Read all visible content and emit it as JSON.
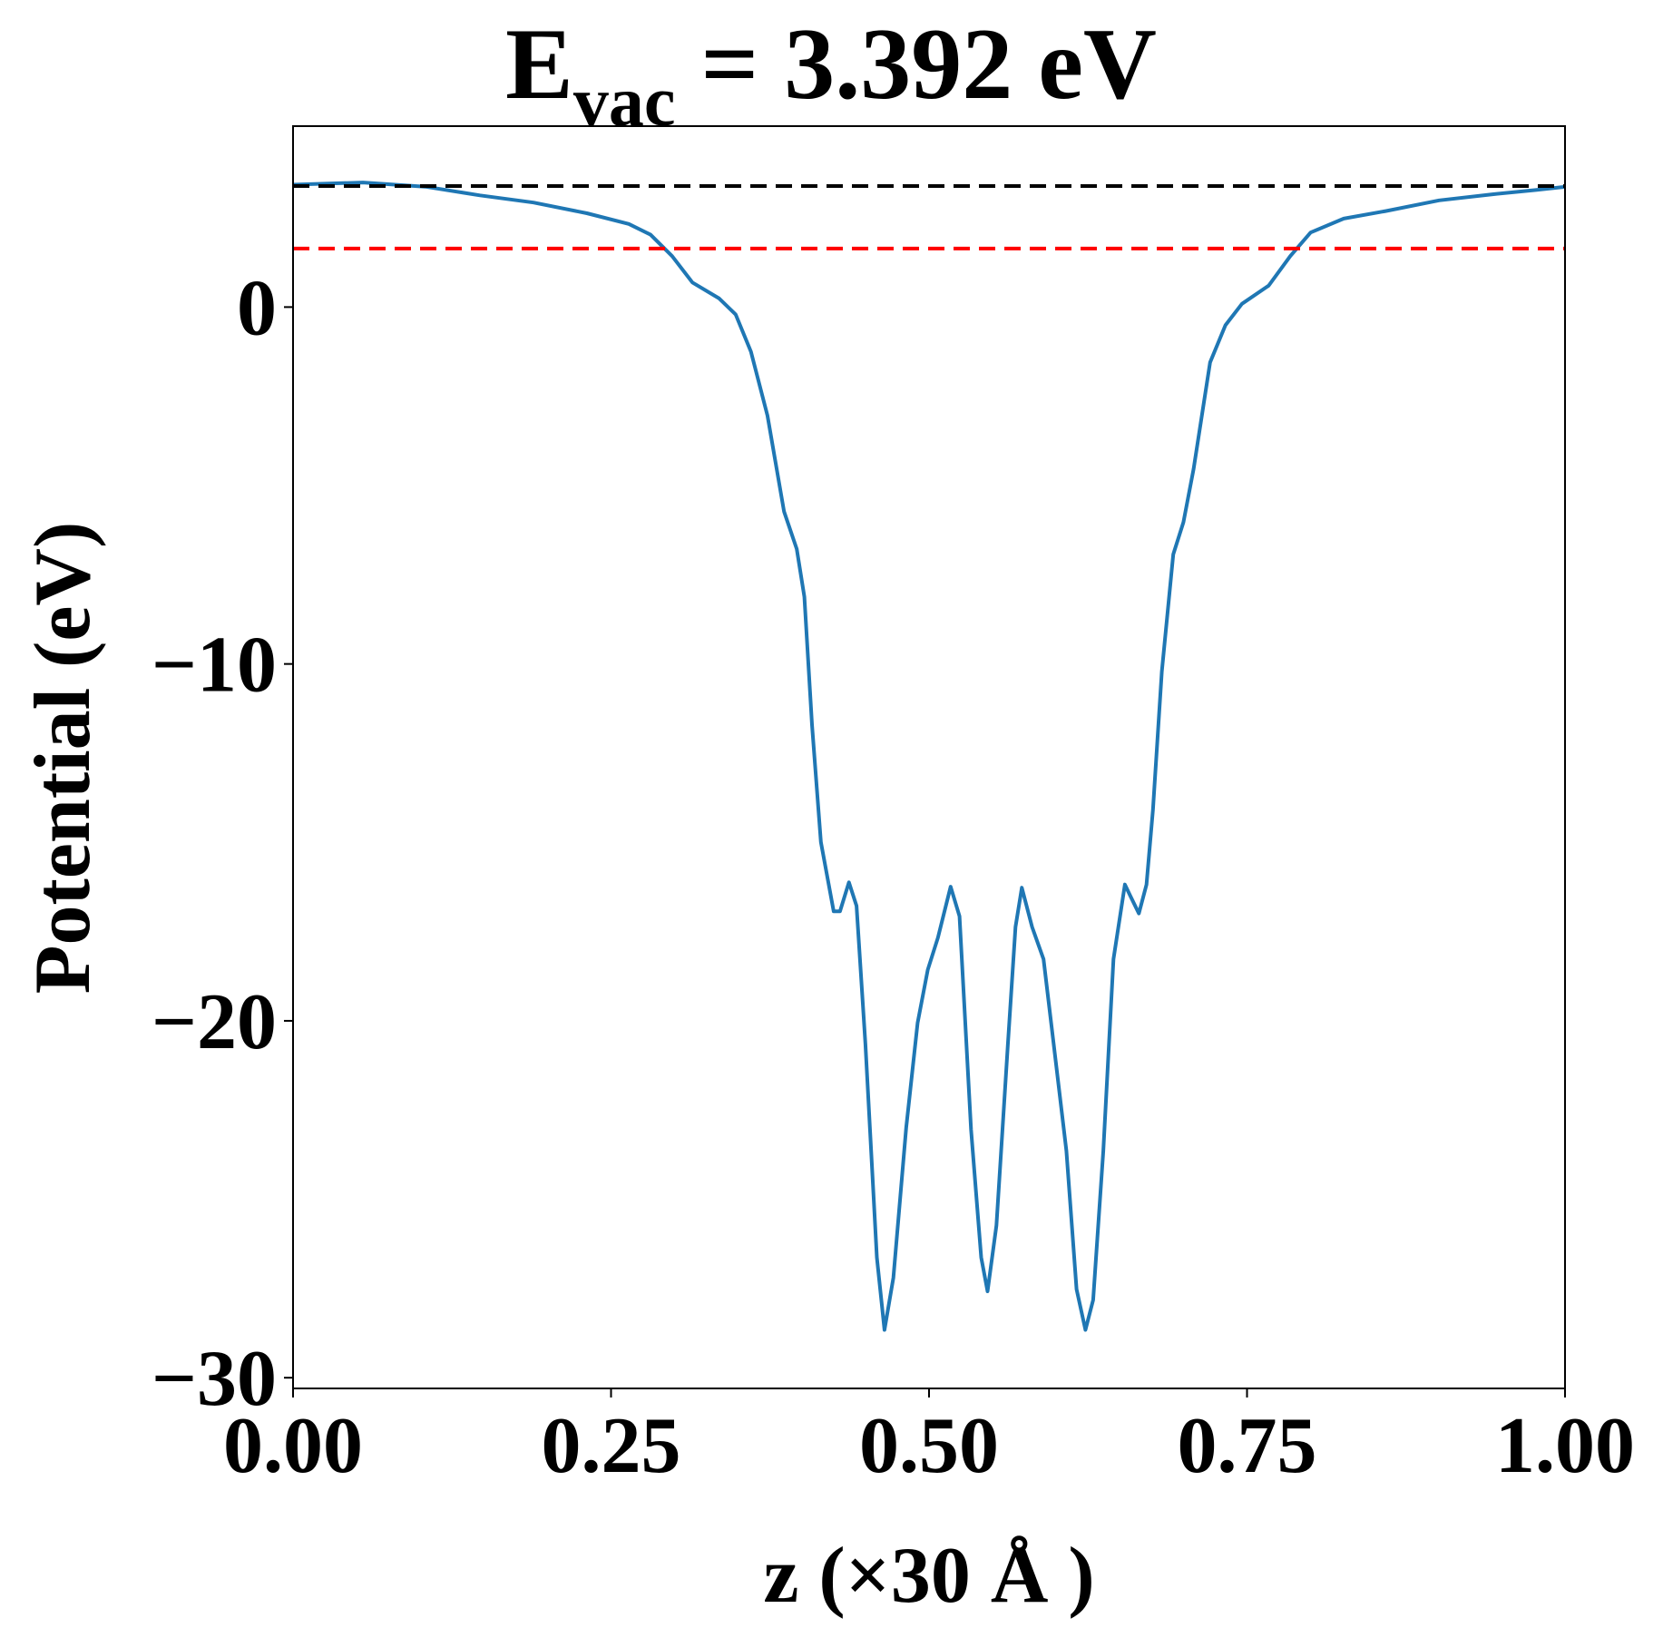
{
  "chart_data": {
    "type": "line",
    "title": {
      "base": "E",
      "sub": "vac",
      "rest": " = 3.392 eV"
    },
    "xlabel": "z (×30 Å )",
    "ylabel": "Potential (eV)",
    "xlim": [
      0,
      1
    ],
    "ylim": [
      -30.3,
      5.07
    ],
    "xticks": [
      {
        "value": 0,
        "label": "0.00"
      },
      {
        "value": 0.25,
        "label": "0.25"
      },
      {
        "value": 0.5,
        "label": "0.50"
      },
      {
        "value": 0.75,
        "label": "0.75"
      },
      {
        "value": 1,
        "label": "1.00"
      }
    ],
    "yticks": [
      {
        "value": -30,
        "label": "−30"
      },
      {
        "value": -20,
        "label": "−20"
      },
      {
        "value": -10,
        "label": "−10"
      },
      0
    ],
    "hlines": [
      {
        "value": 3.392,
        "color": "#000000"
      },
      {
        "value": 1.64,
        "color": "#ff0000"
      }
    ],
    "series": [
      {
        "color": "#1f77b4",
        "x": [
          0,
          0.055,
          0.105,
          0.147,
          0.189,
          0.231,
          0.264,
          0.281,
          0.298,
          0.314,
          0.335,
          0.348,
          0.36,
          0.373,
          0.386,
          0.396,
          0.402,
          0.408,
          0.415,
          0.425,
          0.43,
          0.437,
          0.443,
          0.45,
          0.459,
          0.465,
          0.472,
          0.482,
          0.491,
          0.499,
          0.507,
          0.517,
          0.524,
          0.533,
          0.541,
          0.546,
          0.553,
          0.562,
          0.568,
          0.573,
          0.581,
          0.59,
          0.6,
          0.608,
          0.616,
          0.623,
          0.629,
          0.637,
          0.645,
          0.654,
          0.658,
          0.665,
          0.671,
          0.676,
          0.683,
          0.692,
          0.7,
          0.708,
          0.721,
          0.733,
          0.746,
          0.767,
          0.784,
          0.8,
          0.826,
          0.859,
          0.901,
          0.943,
          0.977,
          1.0
        ],
        "values": [
          3.43,
          3.49,
          3.37,
          3.13,
          2.93,
          2.63,
          2.33,
          2.03,
          1.43,
          0.69,
          0.24,
          -0.21,
          -1.25,
          -3.04,
          -5.73,
          -6.78,
          -8.12,
          -11.7,
          -14.99,
          -16.93,
          -16.93,
          -16.12,
          -16.78,
          -20.66,
          -26.63,
          -28.66,
          -27.2,
          -23.0,
          -20.06,
          -18.57,
          -17.67,
          -16.24,
          -17.07,
          -23.04,
          -26.63,
          -27.58,
          -25.73,
          -20.66,
          -17.37,
          -16.27,
          -17.37,
          -18.27,
          -21.25,
          -23.64,
          -27.52,
          -28.66,
          -27.82,
          -23.64,
          -18.27,
          -16.18,
          -16.48,
          -16.99,
          -16.18,
          -14.09,
          -10.21,
          -6.93,
          -6.03,
          -4.54,
          -1.55,
          -0.51,
          0.09,
          0.6,
          1.43,
          2.09,
          2.48,
          2.69,
          2.99,
          3.16,
          3.28,
          3.37
        ]
      }
    ]
  }
}
